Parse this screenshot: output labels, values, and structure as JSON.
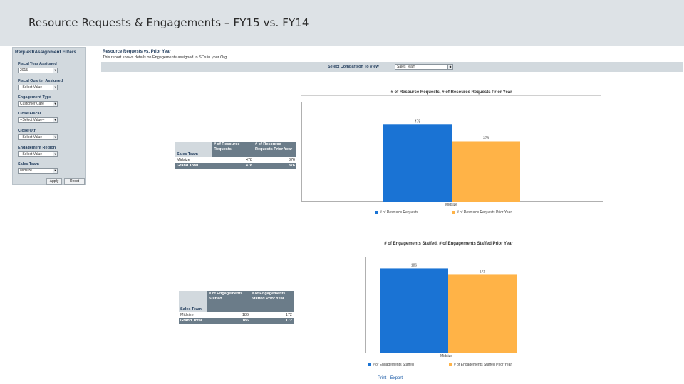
{
  "page_title": "Resource Requests & Engagements – FY15 vs. FY14",
  "filters": {
    "title": "Request/Assignment Filters",
    "fiscal_year": {
      "label": "Fiscal Year Assigned",
      "value": "2015"
    },
    "fiscal_quarter": {
      "label": "Fiscal Quarter Assigned",
      "value": "--Select Value--"
    },
    "engagement_type": {
      "label": "Engagement Type",
      "value": "Customer Care"
    },
    "close_fiscal": {
      "label": "Close Fiscal",
      "value": "--Select Value--"
    },
    "close_qtr": {
      "label": "Close Qtr",
      "value": "--Select Value--"
    },
    "engagement_region": {
      "label": "Engagement Region",
      "value": "--Select Value--"
    },
    "sales_team": {
      "label": "Sales Team",
      "value": "Midsize"
    },
    "apply_label": "Apply",
    "reset_label": "Reset"
  },
  "report": {
    "title": "Resource Requests vs. Prior Year",
    "description": "This report shows details on Engagements assigned to SCs in your Org.",
    "comparison_label": "Select Comparison To View",
    "comparison_value": "Sales Team"
  },
  "table1": {
    "dim_header": "Sales Team",
    "col1_header": "# of Resource Requests",
    "col2_header": "# of Resource Requests Prior Year",
    "row_name": "Midsize",
    "row_v1": "478",
    "row_v2": "376",
    "total_name": "Grand Total",
    "total_v1": "478",
    "total_v2": "376"
  },
  "table2": {
    "dim_header": "Sales Team",
    "col1_header": "# of Engagements Staffed",
    "col2_header": "# of Engagements Staffed Prior Year",
    "row_name": "Midsize",
    "row_v1": "186",
    "row_v2": "172",
    "total_name": "Grand Total",
    "total_v1": "186",
    "total_v2": "172"
  },
  "colors": {
    "series1": "#1a73d4",
    "series2": "#ffb347"
  },
  "chart_data": [
    {
      "type": "bar",
      "title": "# of Resource Requests, # of Resource Requests Prior Year",
      "categories": [
        "Midsize"
      ],
      "series": [
        {
          "name": "# of Resource Requests",
          "values": [
            478
          ]
        },
        {
          "name": "# of Resource Requests Prior Year",
          "values": [
            376
          ]
        }
      ],
      "ylim": [
        0,
        620
      ],
      "legend": "bottom"
    },
    {
      "type": "bar",
      "title": "# of Engagements Staffed, # of Engagements Staffed Prior Year",
      "categories": [
        "Midsize"
      ],
      "series": [
        {
          "name": "# of Engagements Staffed",
          "values": [
            186
          ]
        },
        {
          "name": "# of Engagements Staffed Prior Year",
          "values": [
            172
          ]
        }
      ],
      "ylim": [
        0,
        210
      ],
      "legend": "bottom"
    }
  ],
  "footer": {
    "print_label": "Print",
    "separator": " - ",
    "export_label": "Export"
  }
}
